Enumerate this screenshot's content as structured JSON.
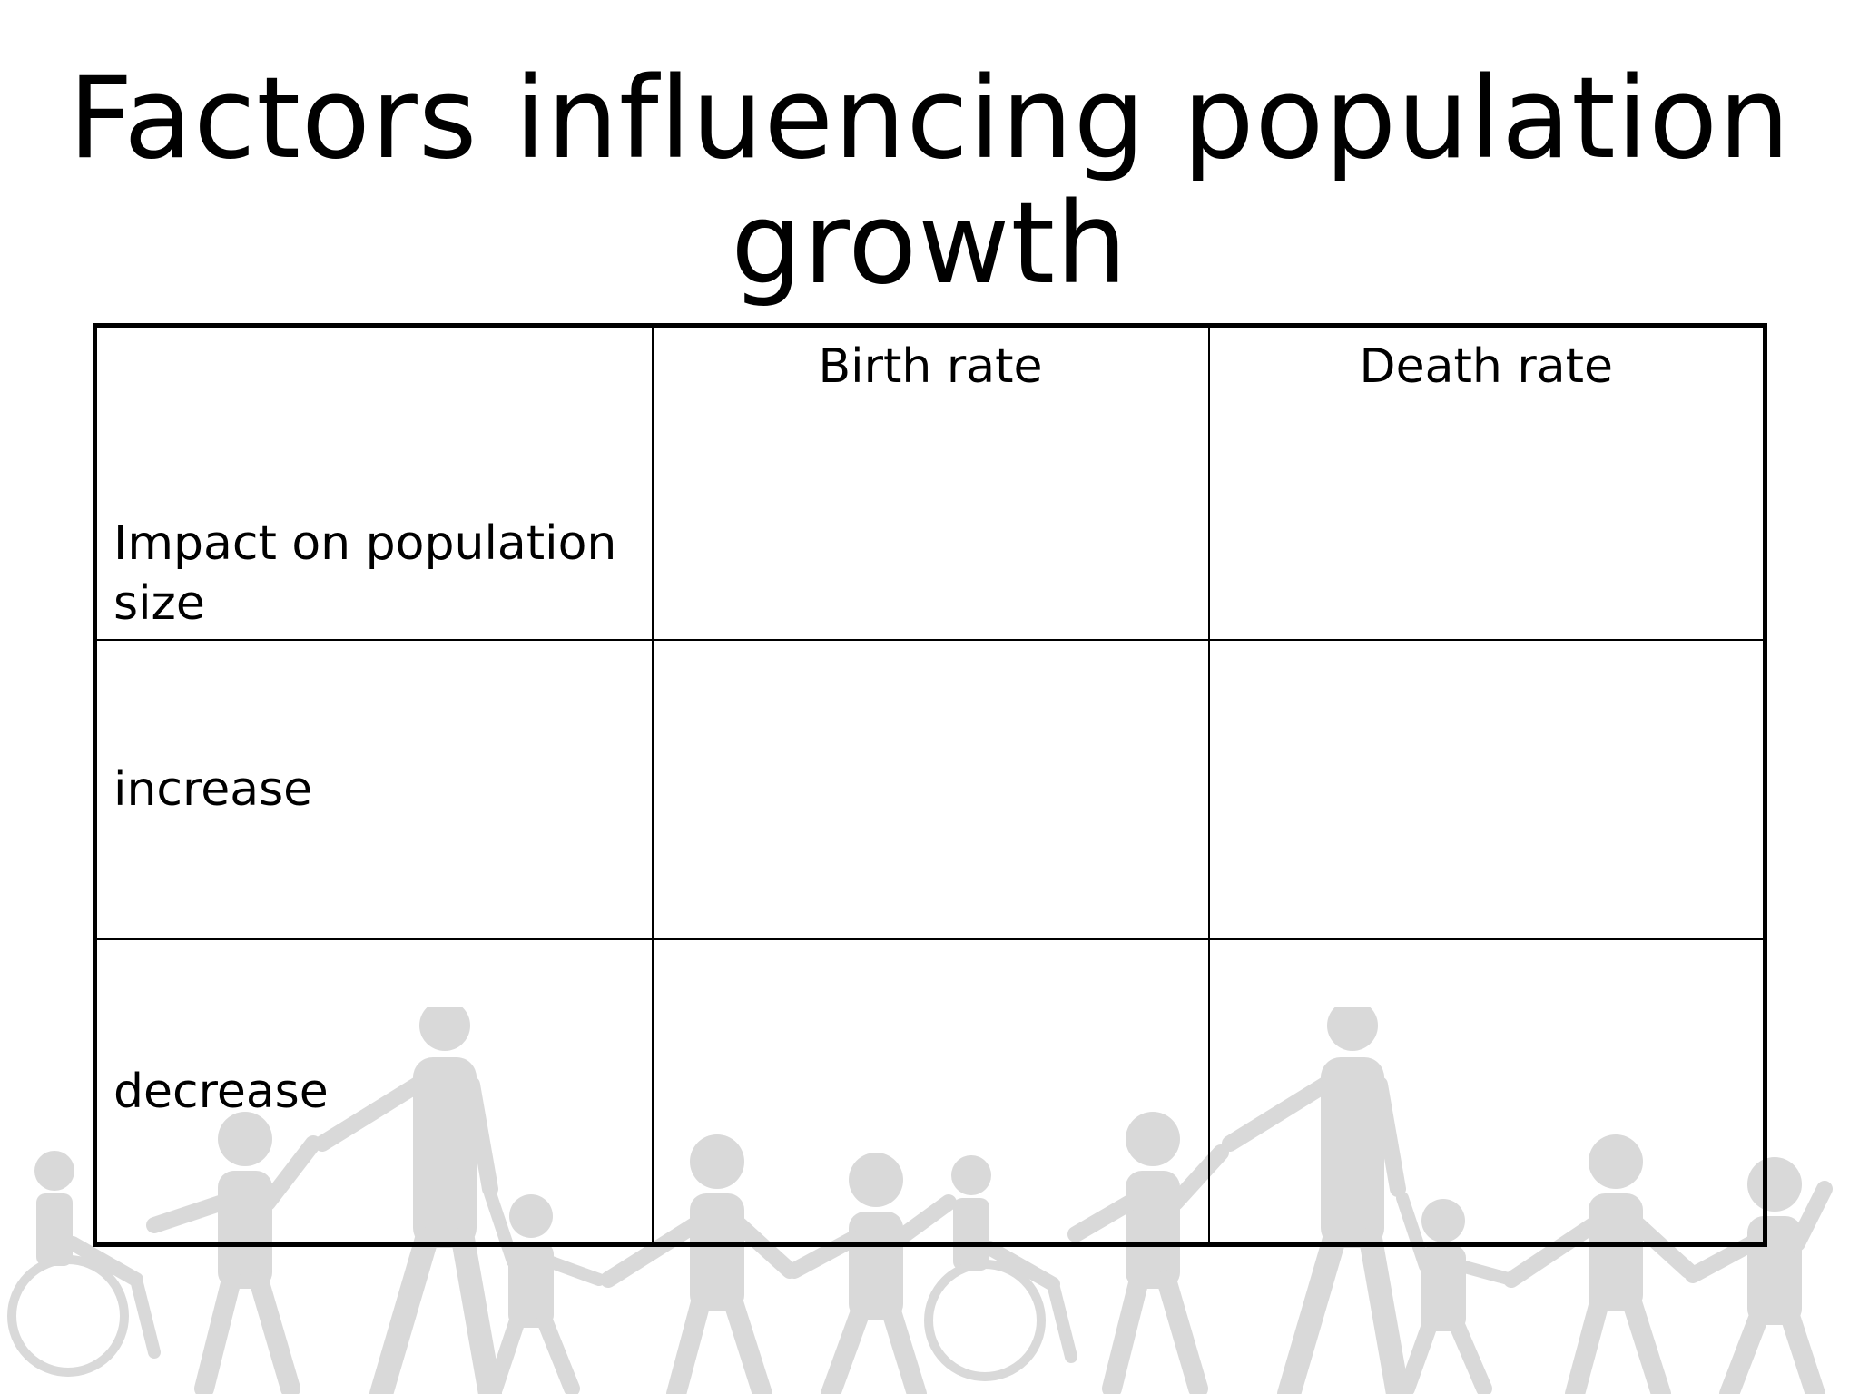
{
  "title": {
    "line1": "Factors influencing population",
    "line2": "growth"
  },
  "table": {
    "headers": [
      "",
      "Birth rate",
      "Death rate"
    ],
    "rows": [
      {
        "label": "Impact on population size",
        "birth_rate": "",
        "death_rate": ""
      },
      {
        "label": "increase",
        "birth_rate": "",
        "death_rate": ""
      },
      {
        "label": "decrease",
        "birth_rate": "",
        "death_rate": ""
      }
    ]
  },
  "decoration": {
    "description_icon": "people-holding-hands-icon",
    "color": "#d9d9d9"
  }
}
